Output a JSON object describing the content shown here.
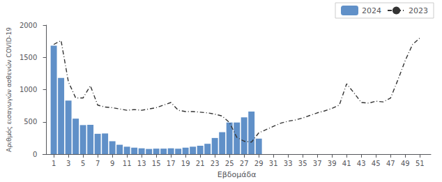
{
  "chart_data": {
    "type": "bar",
    "xlabel": "Εβδομάδα",
    "ylabel": "Αριθμός εισαγωγών ασθενών COVID-19",
    "xlim": [
      -0.5,
      52.5
    ],
    "xticks": [
      1,
      3,
      5,
      7,
      9,
      11,
      13,
      15,
      17,
      19,
      21,
      23,
      25,
      27,
      29,
      31,
      33,
      35,
      37,
      39,
      41,
      43,
      45,
      47,
      49,
      51
    ],
    "ylim": [
      0,
      2000
    ],
    "yticks": [
      0,
      500,
      1000,
      1500,
      2000
    ],
    "grid": false,
    "legend": "upper right",
    "series": [
      {
        "name": "2024",
        "type": "bar",
        "color": "#6090c8",
        "x": [
          1,
          2,
          3,
          4,
          5,
          6,
          7,
          8,
          9,
          10,
          11,
          12,
          13,
          14,
          15,
          16,
          17,
          18,
          19,
          20,
          21,
          22,
          23,
          24,
          25,
          26,
          27,
          28,
          29
        ],
        "values": [
          1680,
          1180,
          830,
          550,
          450,
          455,
          315,
          320,
          200,
          145,
          115,
          100,
          90,
          80,
          85,
          85,
          90,
          85,
          100,
          115,
          130,
          160,
          250,
          340,
          490,
          490,
          570,
          660,
          240
        ]
      },
      {
        "name": "2023",
        "type": "line",
        "color": "#333333",
        "line_style": "dashdot",
        "x": [
          1,
          2,
          3,
          4,
          5,
          6,
          7,
          8,
          9,
          10,
          11,
          12,
          13,
          14,
          15,
          16,
          17,
          18,
          19,
          20,
          21,
          22,
          23,
          24,
          25,
          26,
          27,
          28,
          29,
          30,
          31,
          32,
          33,
          34,
          35,
          36,
          37,
          38,
          39,
          40,
          41,
          42,
          43,
          44,
          45,
          46,
          47,
          48,
          49,
          50,
          51
        ],
        "values": [
          1700,
          1760,
          1120,
          870,
          870,
          1060,
          760,
          730,
          720,
          700,
          680,
          690,
          680,
          700,
          720,
          760,
          800,
          680,
          660,
          660,
          650,
          640,
          620,
          590,
          490,
          260,
          200,
          185,
          330,
          380,
          430,
          480,
          510,
          530,
          560,
          600,
          640,
          670,
          710,
          760,
          1090,
          950,
          800,
          790,
          820,
          810,
          870,
          1150,
          1450,
          1700,
          1800
        ]
      }
    ]
  }
}
